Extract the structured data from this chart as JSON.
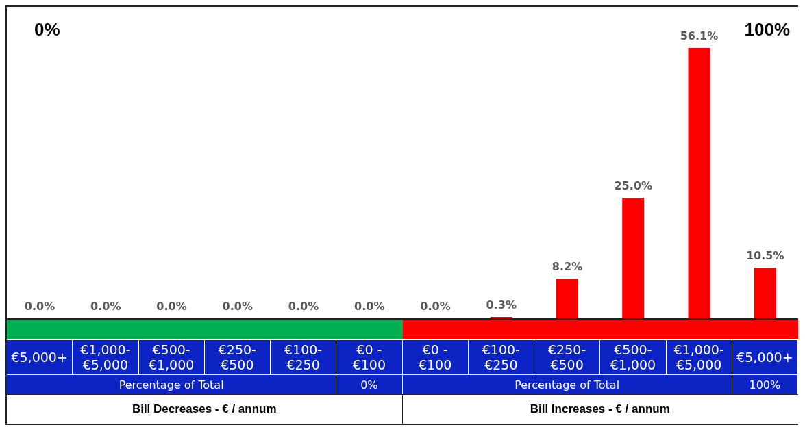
{
  "chart_data": {
    "type": "bar",
    "categories": [
      "€5,000+",
      "€1,000-€5,000",
      "€500-€1,000",
      "€250-€500",
      "€100-€250",
      "€0 - €100",
      "€0 - €100",
      "€100-€250",
      "€250-€500",
      "€500-€1,000",
      "€1,000-€5,000",
      "€5,000+"
    ],
    "values": [
      0,
      0,
      0,
      0,
      0,
      0,
      0,
      0.3,
      8.2,
      25.0,
      56.1,
      10.5
    ],
    "value_labels": [
      "0.0%",
      "0.0%",
      "0.0%",
      "0.0%",
      "0.0%",
      "0.0%",
      "0.0%",
      "0.3%",
      "8.2%",
      "25.0%",
      "56.1%",
      "10.5%"
    ],
    "color": "#ff0000",
    "annotations": [
      "0%",
      "100%",
      "Percentage of Total",
      "0%",
      "Percentage of Total",
      "100%",
      "Bill Decreases - € / annum",
      "Bill Increases - € / annum"
    ]
  }
}
